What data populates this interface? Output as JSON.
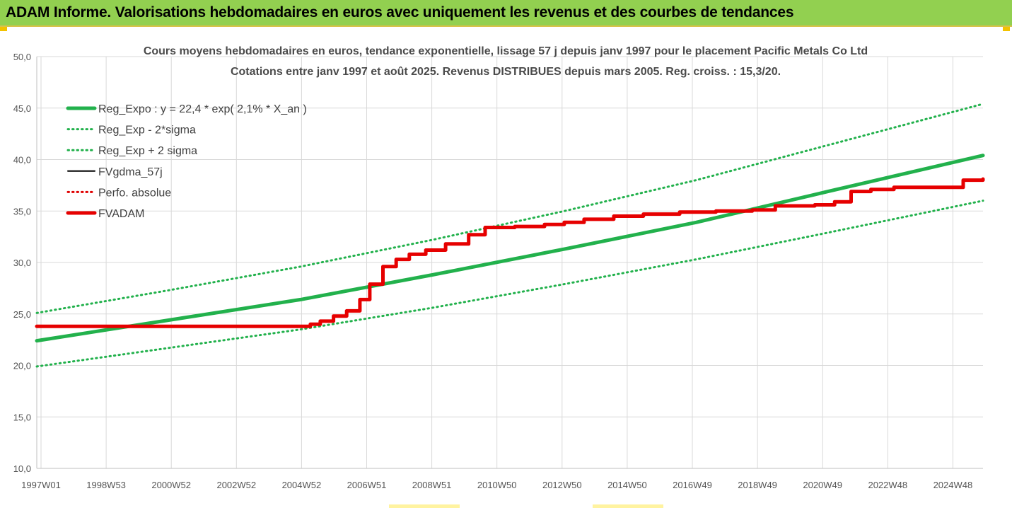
{
  "banner": {
    "title": "ADAM Informe. Valorisations hebdomadaires en euros avec uniquement les revenus et des courbes de tendances"
  },
  "colors": {
    "banner_bg": "#92d050",
    "trend": "#22b14c",
    "band": "#22b14c",
    "fv_gdma": "#000000",
    "perfo": "#e00000",
    "fvadam": "#e60000"
  },
  "chart_data": {
    "type": "line",
    "title": "Cours moyens hebdomadaires en euros, tendance exponentielle, lissage 57 j depuis janv 1997  pour le placement Pacific Metals Co Ltd",
    "subtitle": "Cotations entre janv 1997 et août 2025. Revenus DISTRIBUES depuis mars 2005. Reg. croiss. : 15,3/20.",
    "x_tick_labels": [
      "1997W01",
      "1998W53",
      "2000W52",
      "2002W52",
      "2004W52",
      "2006W51",
      "2008W51",
      "2010W50",
      "2012W50",
      "2014W50",
      "2016W49",
      "2018W49",
      "2020W49",
      "2022W48",
      "2024W48"
    ],
    "x_range": [
      1997.0,
      2025.7
    ],
    "y_ticks": [
      "10,0",
      "15,0",
      "20,0",
      "25,0",
      "30,0",
      "35,0",
      "40,0",
      "45,0",
      "50,0"
    ],
    "ylim": [
      10,
      50
    ],
    "grid": true,
    "legend_position": "top-left",
    "series": [
      {
        "name": "Reg_Expo : y = 22,4 * exp( 2,1% *  X_an )",
        "style": "solid-thick",
        "color": "#22b14c",
        "x": [
          1997.0,
          2001.0,
          2005.0,
          2009.0,
          2013.0,
          2017.0,
          2021.0,
          2025.7
        ],
        "y": [
          22.4,
          24.4,
          26.4,
          28.8,
          31.3,
          33.9,
          36.9,
          40.4
        ]
      },
      {
        "name": "Reg_Exp - 2*sigma",
        "style": "dotted",
        "color": "#22b14c",
        "x": [
          1997.0,
          2001.0,
          2005.0,
          2009.0,
          2013.0,
          2017.0,
          2021.0,
          2025.7
        ],
        "y": [
          19.9,
          21.7,
          23.5,
          25.6,
          27.9,
          30.3,
          32.9,
          36.0
        ]
      },
      {
        "name": "Reg_Exp + 2 sigma",
        "style": "dotted",
        "color": "#22b14c",
        "x": [
          1997.0,
          2001.0,
          2005.0,
          2009.0,
          2013.0,
          2017.0,
          2021.0,
          2025.7
        ],
        "y": [
          25.1,
          27.3,
          29.6,
          32.2,
          35.0,
          38.0,
          41.4,
          45.4
        ]
      },
      {
        "name": "FVgdma_57j",
        "style": "solid",
        "color": "#000000",
        "x": [
          1997.0,
          2004.9,
          2005.3,
          2005.6,
          2006.0,
          2006.4,
          2006.8,
          2007.1,
          2007.5,
          2007.9,
          2008.3,
          2008.8,
          2009.4,
          2010.1,
          2010.6,
          2011.5,
          2012.4,
          2013.0,
          2013.6,
          2014.5,
          2015.4,
          2016.5,
          2017.6,
          2018.7,
          2019.4,
          2020.6,
          2021.2,
          2021.7,
          2022.3,
          2023.0,
          2024.8,
          2025.1,
          2025.7
        ],
        "y": [
          23.8,
          23.8,
          24.0,
          24.3,
          24.8,
          25.3,
          26.4,
          27.9,
          29.6,
          30.3,
          30.8,
          31.2,
          31.8,
          32.7,
          33.4,
          33.5,
          33.7,
          33.9,
          34.2,
          34.5,
          34.7,
          34.9,
          35.0,
          35.1,
          35.5,
          35.6,
          35.9,
          36.9,
          37.1,
          37.3,
          37.3,
          38.0,
          38.1
        ]
      },
      {
        "name": "Perfo. absolue",
        "style": "dotted",
        "color": "#e00000",
        "x": [],
        "y": []
      },
      {
        "name": "FVADAM",
        "style": "solid-thick",
        "color": "#e60000",
        "x": [
          1997.0,
          2004.9,
          2005.3,
          2005.6,
          2006.0,
          2006.4,
          2006.8,
          2007.1,
          2007.5,
          2007.9,
          2008.3,
          2008.8,
          2009.4,
          2010.1,
          2010.6,
          2011.5,
          2012.4,
          2013.0,
          2013.6,
          2014.5,
          2015.4,
          2016.5,
          2017.6,
          2018.7,
          2019.4,
          2020.6,
          2021.2,
          2021.7,
          2022.3,
          2023.0,
          2024.8,
          2025.1,
          2025.7
        ],
        "y": [
          23.8,
          23.8,
          24.0,
          24.3,
          24.8,
          25.3,
          26.4,
          27.9,
          29.6,
          30.3,
          30.8,
          31.2,
          31.8,
          32.7,
          33.4,
          33.5,
          33.7,
          33.9,
          34.2,
          34.5,
          34.7,
          34.9,
          35.0,
          35.1,
          35.5,
          35.6,
          35.9,
          36.9,
          37.1,
          37.3,
          37.3,
          38.0,
          38.1
        ]
      }
    ]
  }
}
